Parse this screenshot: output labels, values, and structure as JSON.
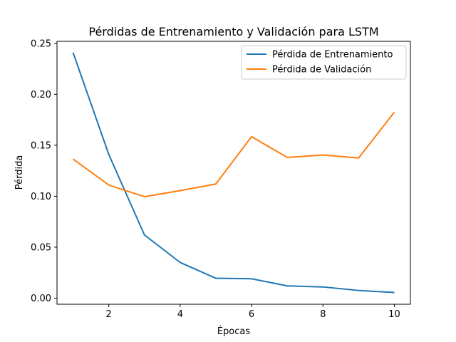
{
  "chart_data": {
    "type": "line",
    "title": "Pérdidas de Entrenamiento y Validación para LSTM",
    "xlabel": "Épocas",
    "ylabel": "Pérdida",
    "xlim": [
      0.55,
      10.45
    ],
    "ylim": [
      -0.006,
      0.252
    ],
    "xticks": [
      2,
      4,
      6,
      8,
      10
    ],
    "xtick_labels": [
      "2",
      "4",
      "6",
      "8",
      "10"
    ],
    "yticks": [
      0.0,
      0.05,
      0.1,
      0.15,
      0.2,
      0.25
    ],
    "ytick_labels": [
      "0.00",
      "0.05",
      "0.10",
      "0.15",
      "0.20",
      "0.25"
    ],
    "grid": false,
    "legend_position": "top-right",
    "x": [
      1,
      2,
      3,
      4,
      5,
      6,
      7,
      8,
      9,
      10
    ],
    "series": [
      {
        "name": "Pérdida de Entrenamiento",
        "color": "#1f77b4",
        "values": [
          0.241,
          0.141,
          0.062,
          0.035,
          0.0195,
          0.019,
          0.012,
          0.011,
          0.0075,
          0.0055
        ]
      },
      {
        "name": "Pérdida de Validación",
        "color": "#ff7f0e",
        "values": [
          0.1365,
          0.111,
          0.0995,
          0.1055,
          0.112,
          0.1585,
          0.138,
          0.1405,
          0.1375,
          0.1825
        ]
      }
    ]
  }
}
